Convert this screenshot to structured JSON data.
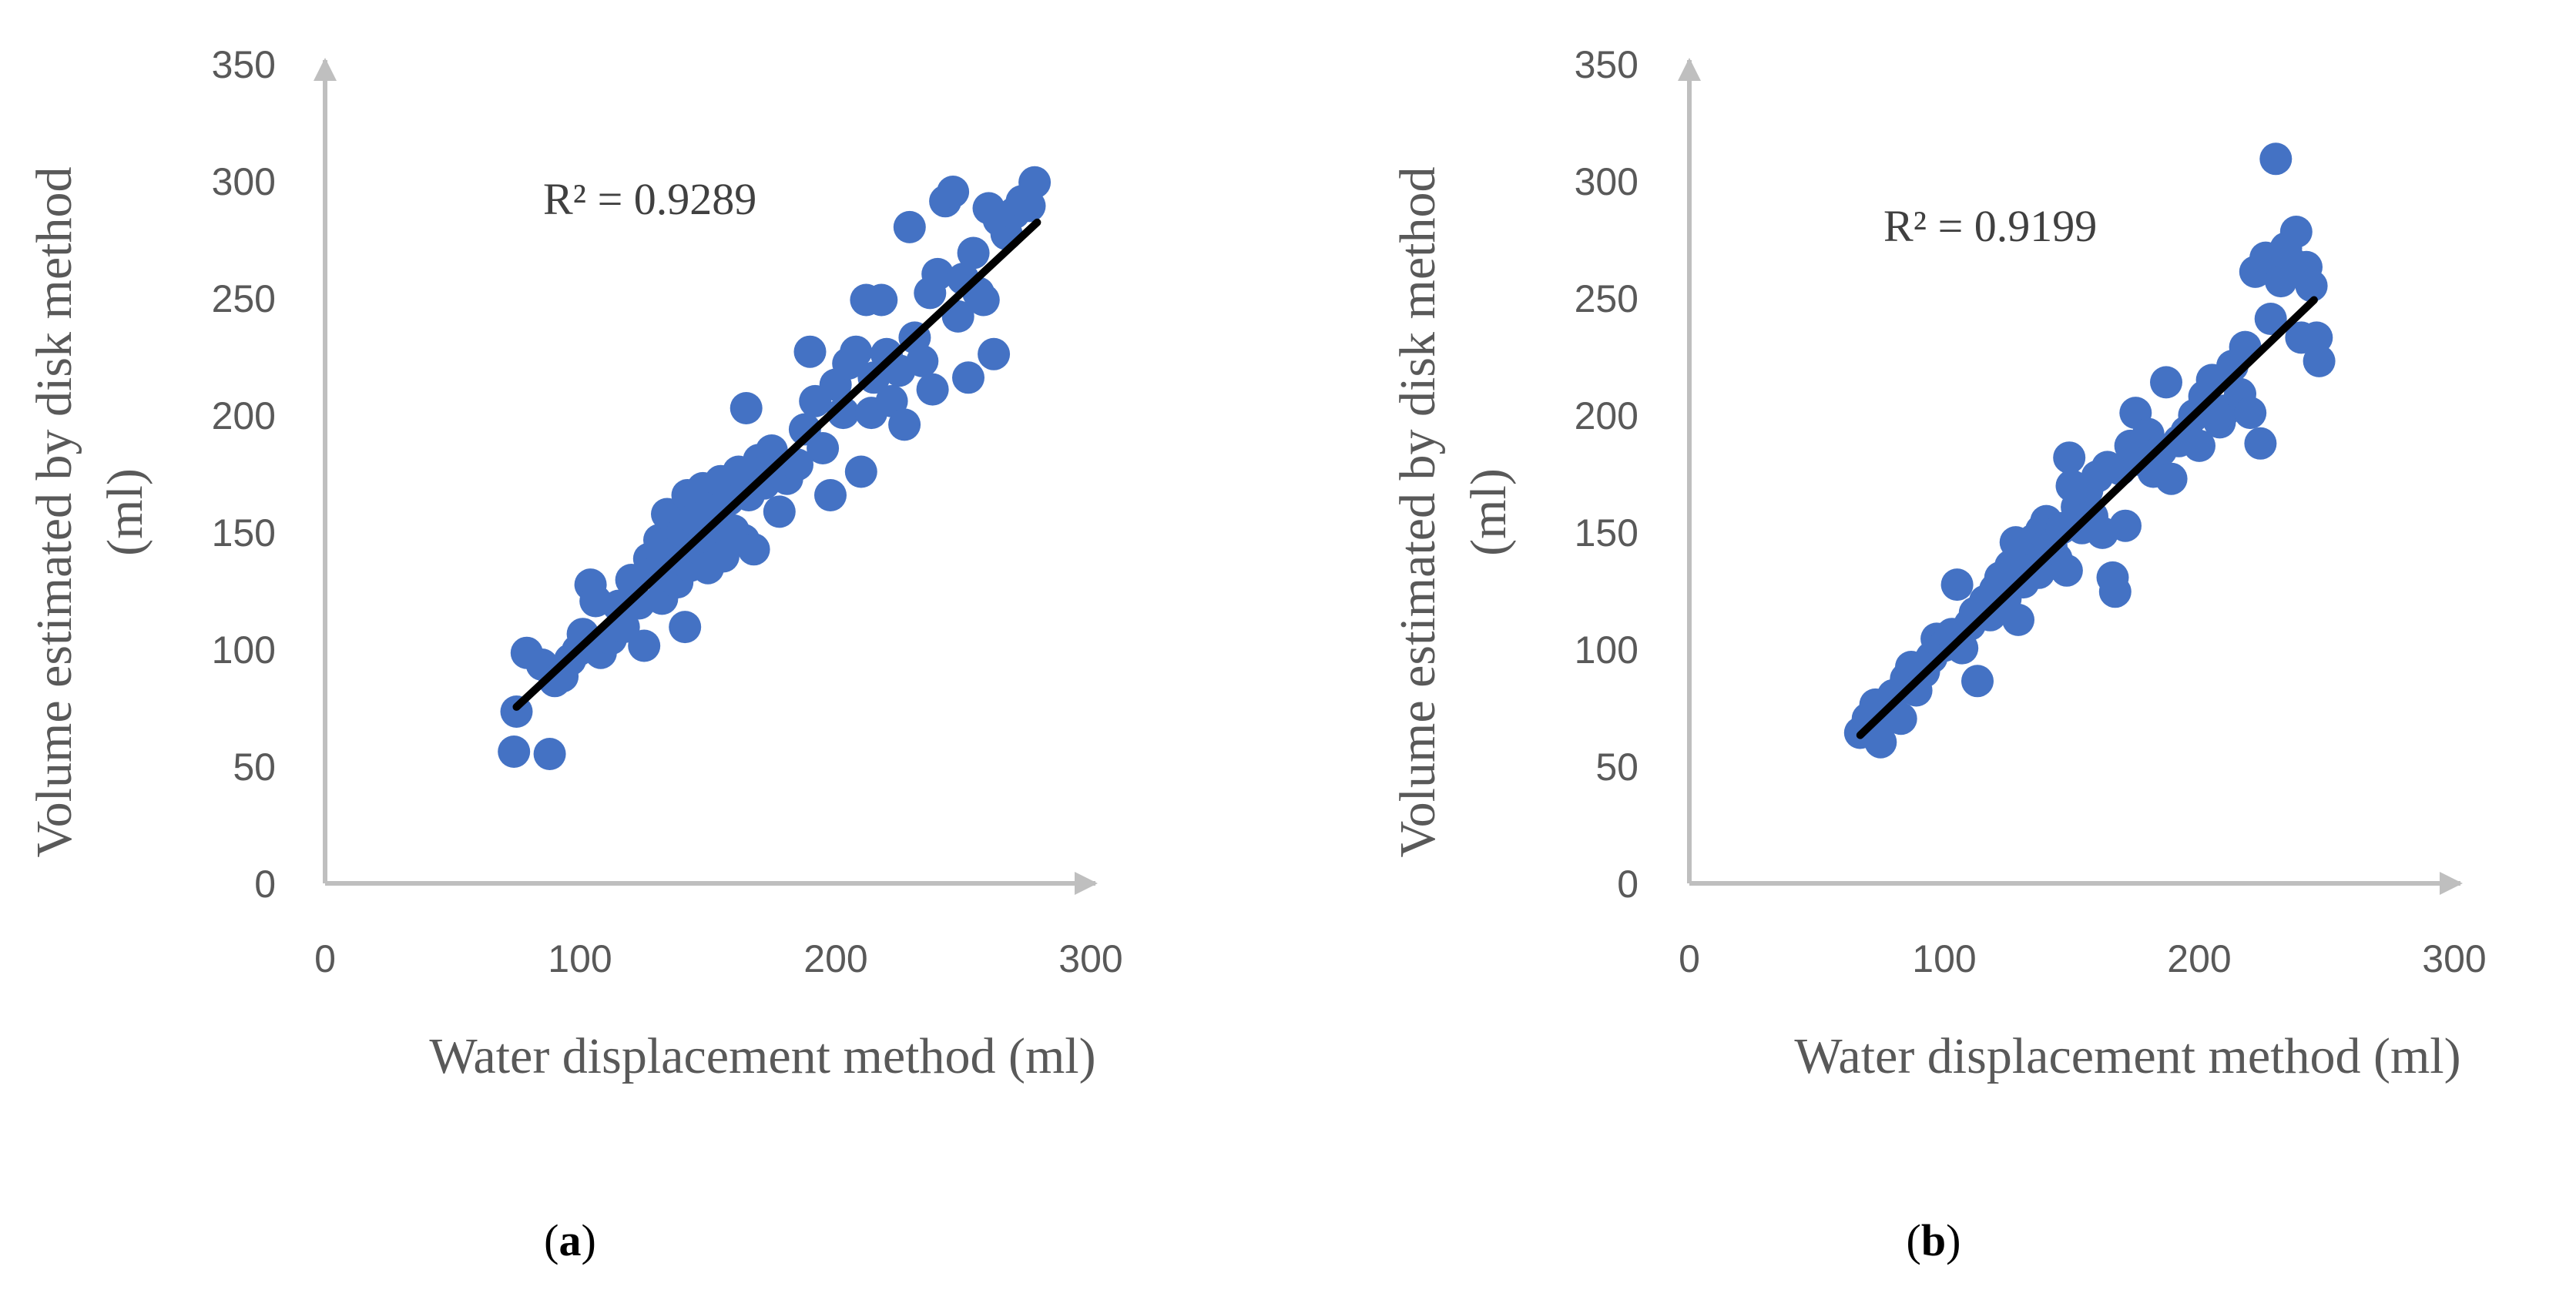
{
  "colors": {
    "points": "#4472C4",
    "trendline": "#000000",
    "axis": "#BFBFBF",
    "text": "#595959"
  },
  "chart_data": [
    {
      "type": "scatter",
      "panel_label": "a",
      "xlabel": "Water displacement method (ml)",
      "ylabel_line1": "Volume estimated by disk method",
      "ylabel_line2": "(ml)",
      "annotation": "R² = 0.9289",
      "xlim": [
        0,
        300
      ],
      "ylim": [
        0,
        350
      ],
      "x_ticks": [
        "0",
        "100",
        "200",
        "300"
      ],
      "y_ticks": [
        "0",
        "50",
        "100",
        "150",
        "200",
        "250",
        "300",
        "350"
      ],
      "trendline": {
        "x": [
          75,
          279
        ],
        "y": [
          75,
          281
        ]
      },
      "points": [
        [
          74,
          56
        ],
        [
          75,
          73
        ],
        [
          79,
          98
        ],
        [
          85,
          93
        ],
        [
          88,
          55
        ],
        [
          90,
          86
        ],
        [
          93,
          88
        ],
        [
          96,
          95
        ],
        [
          99,
          99
        ],
        [
          101,
          106
        ],
        [
          104,
          127
        ],
        [
          106,
          120
        ],
        [
          108,
          98
        ],
        [
          112,
          104
        ],
        [
          115,
          118
        ],
        [
          117,
          109
        ],
        [
          120,
          129
        ],
        [
          123,
          119
        ],
        [
          125,
          101
        ],
        [
          127,
          138
        ],
        [
          129,
          132
        ],
        [
          131,
          146
        ],
        [
          132,
          121
        ],
        [
          134,
          157
        ],
        [
          136,
          140
        ],
        [
          138,
          128
        ],
        [
          140,
          149
        ],
        [
          141,
          109
        ],
        [
          142,
          165
        ],
        [
          143,
          135
        ],
        [
          145,
          155
        ],
        [
          147,
          142
        ],
        [
          148,
          168
        ],
        [
          150,
          134
        ],
        [
          151,
          148
        ],
        [
          153,
          160
        ],
        [
          155,
          171
        ],
        [
          156,
          139
        ],
        [
          158,
          163
        ],
        [
          160,
          150
        ],
        [
          162,
          175
        ],
        [
          164,
          146
        ],
        [
          165,
          202
        ],
        [
          166,
          165
        ],
        [
          168,
          142
        ],
        [
          170,
          180
        ],
        [
          172,
          170
        ],
        [
          175,
          184
        ],
        [
          178,
          158
        ],
        [
          181,
          172
        ],
        [
          185,
          178
        ],
        [
          188,
          193
        ],
        [
          190,
          226
        ],
        [
          192,
          205
        ],
        [
          195,
          185
        ],
        [
          198,
          165
        ],
        [
          200,
          212
        ],
        [
          203,
          200
        ],
        [
          205,
          221
        ],
        [
          208,
          226
        ],
        [
          210,
          175
        ],
        [
          212,
          248
        ],
        [
          214,
          200
        ],
        [
          215,
          215
        ],
        [
          218,
          248
        ],
        [
          220,
          225
        ],
        [
          222,
          205
        ],
        [
          225,
          218
        ],
        [
          227,
          195
        ],
        [
          229,
          279
        ],
        [
          231,
          232
        ],
        [
          234,
          222
        ],
        [
          237,
          251
        ],
        [
          238,
          210
        ],
        [
          240,
          259
        ],
        [
          243,
          290
        ],
        [
          246,
          294
        ],
        [
          248,
          241
        ],
        [
          250,
          257
        ],
        [
          252,
          215
        ],
        [
          254,
          268
        ],
        [
          256,
          251
        ],
        [
          258,
          248
        ],
        [
          260,
          287
        ],
        [
          262,
          225
        ],
        [
          264,
          282
        ],
        [
          267,
          276
        ],
        [
          270,
          285
        ],
        [
          273,
          290
        ],
        [
          276,
          288
        ],
        [
          278,
          298
        ]
      ]
    },
    {
      "type": "scatter",
      "panel_label": "b",
      "xlabel": "Water displacement method (ml)",
      "ylabel_line1": "Volume estimated by disk method",
      "ylabel_line2": "(ml)",
      "annotation": "R² = 0.9199",
      "xlim": [
        0,
        300
      ],
      "ylim": [
        0,
        350
      ],
      "x_ticks": [
        "0",
        "100",
        "200",
        "300"
      ],
      "y_ticks": [
        "0",
        "50",
        "100",
        "150",
        "200",
        "250",
        "300",
        "350"
      ],
      "trendline": {
        "x": [
          67,
          245
        ],
        "y": [
          63,
          248
        ]
      },
      "points": [
        [
          67,
          64
        ],
        [
          70,
          70
        ],
        [
          73,
          76
        ],
        [
          75,
          60
        ],
        [
          78,
          72
        ],
        [
          80,
          80
        ],
        [
          83,
          70
        ],
        [
          85,
          87
        ],
        [
          87,
          92
        ],
        [
          89,
          82
        ],
        [
          92,
          90
        ],
        [
          95,
          96
        ],
        [
          97,
          104
        ],
        [
          100,
          101
        ],
        [
          103,
          106
        ],
        [
          105,
          127
        ],
        [
          107,
          100
        ],
        [
          110,
          110
        ],
        [
          112,
          115
        ],
        [
          113,
          86
        ],
        [
          116,
          120
        ],
        [
          118,
          114
        ],
        [
          120,
          125
        ],
        [
          122,
          130
        ],
        [
          124,
          121
        ],
        [
          126,
          135
        ],
        [
          128,
          145
        ],
        [
          129,
          112
        ],
        [
          131,
          128
        ],
        [
          133,
          139
        ],
        [
          135,
          146
        ],
        [
          137,
          132
        ],
        [
          138,
          150
        ],
        [
          140,
          154
        ],
        [
          142,
          143
        ],
        [
          144,
          138
        ],
        [
          146,
          151
        ],
        [
          148,
          133
        ],
        [
          149,
          181
        ],
        [
          150,
          169
        ],
        [
          152,
          160
        ],
        [
          154,
          151
        ],
        [
          156,
          167
        ],
        [
          158,
          156
        ],
        [
          160,
          173
        ],
        [
          162,
          149
        ],
        [
          164,
          177
        ],
        [
          166,
          130
        ],
        [
          167,
          124
        ],
        [
          169,
          176
        ],
        [
          171,
          152
        ],
        [
          173,
          186
        ],
        [
          175,
          200
        ],
        [
          177,
          180
        ],
        [
          180,
          191
        ],
        [
          182,
          175
        ],
        [
          185,
          184
        ],
        [
          187,
          213
        ],
        [
          189,
          172
        ],
        [
          192,
          188
        ],
        [
          195,
          192
        ],
        [
          198,
          199
        ],
        [
          200,
          186
        ],
        [
          202,
          207
        ],
        [
          205,
          214
        ],
        [
          208,
          196
        ],
        [
          210,
          201
        ],
        [
          213,
          220
        ],
        [
          216,
          208
        ],
        [
          218,
          228
        ],
        [
          220,
          200
        ],
        [
          222,
          260
        ],
        [
          224,
          187
        ],
        [
          226,
          266
        ],
        [
          228,
          240
        ],
        [
          230,
          308
        ],
        [
          232,
          256
        ],
        [
          234,
          270
        ],
        [
          236,
          264
        ],
        [
          238,
          277
        ],
        [
          240,
          232
        ],
        [
          242,
          262
        ],
        [
          244,
          254
        ],
        [
          246,
          232
        ],
        [
          247,
          222
        ]
      ]
    }
  ]
}
